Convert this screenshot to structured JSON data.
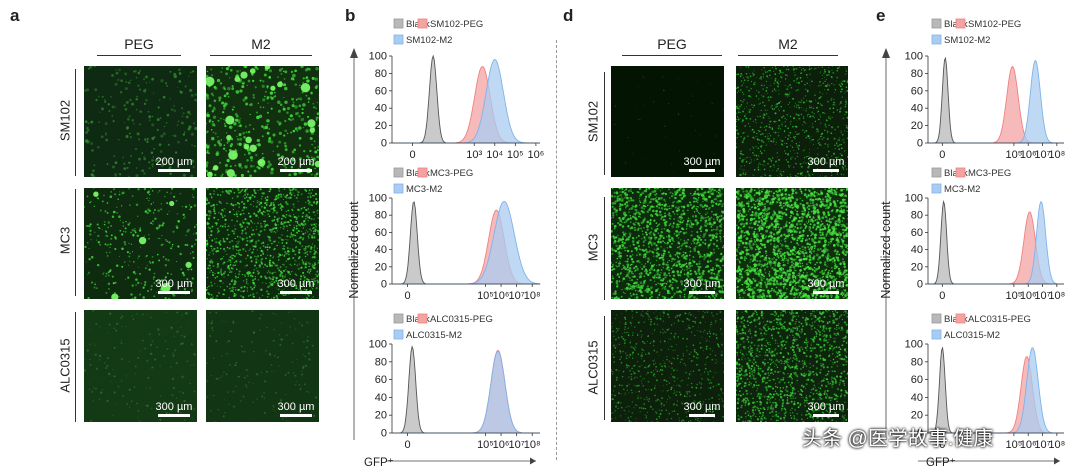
{
  "panels": {
    "a": {
      "letter": "a",
      "columns": [
        "PEG",
        "M2"
      ],
      "rows": [
        {
          "label": "SM102",
          "scale": [
            "200 µm",
            "200 µm"
          ]
        },
        {
          "label": "MC3",
          "scale": [
            "300 µm",
            "300 µm"
          ]
        },
        {
          "label": "ALC0315",
          "scale": [
            "300 µm",
            "300 µm"
          ]
        }
      ]
    },
    "b": {
      "letter": "b"
    },
    "d": {
      "letter": "d",
      "columns": [
        "PEG",
        "M2"
      ],
      "rows": [
        {
          "label": "SM102",
          "scale": [
            "300 µm",
            "300 µm"
          ]
        },
        {
          "label": "MC3",
          "scale": [
            "300 µm",
            "300 µm"
          ]
        },
        {
          "label": "ALC0315",
          "scale": [
            "300 µm",
            "300 µm"
          ]
        }
      ]
    },
    "e": {
      "letter": "e"
    }
  },
  "colors": {
    "blank": "#9a9a9a",
    "peg": "#f08080",
    "m2": "#7fb3ea",
    "fluor": "#3fd63a"
  },
  "watermark": "头条 @医学故事.健康",
  "chart_data": [
    {
      "panel": "b",
      "type": "area",
      "ylabel": "Normalized count",
      "xlabel": "GFP⁺",
      "ylim": [
        0,
        100
      ],
      "xscale": "log",
      "yticks": [
        "0",
        "20",
        "40",
        "60",
        "80",
        "100"
      ],
      "xticks": [
        {
          "v": 0,
          "t": "0"
        },
        {
          "v": 3,
          "t": "10³"
        },
        {
          "v": 4,
          "t": "10⁴"
        },
        {
          "v": 5,
          "t": "10⁵"
        },
        {
          "v": 6,
          "t": "10⁶"
        }
      ],
      "xrange": [
        -1,
        6.2
      ],
      "legend": [
        "Blank",
        "SM102-PEG",
        "SM102-M2"
      ],
      "series": [
        {
          "name": "Blank",
          "peak_log": 1.0,
          "width": 0.18,
          "height": 100
        },
        {
          "name": "SM102-PEG",
          "peak_log": 3.4,
          "width": 0.38,
          "height": 88
        },
        {
          "name": "SM102-M2",
          "peak_log": 4.0,
          "width": 0.42,
          "height": 96
        }
      ]
    },
    {
      "panel": "b",
      "type": "area",
      "ylim": [
        0,
        100
      ],
      "xscale": "log",
      "yticks": [
        "0",
        "20",
        "40",
        "60",
        "80",
        "100"
      ],
      "xticks": [
        {
          "v": 0,
          "t": "0"
        },
        {
          "v": 5,
          "t": "10⁵"
        },
        {
          "v": 6,
          "t": "10⁶"
        },
        {
          "v": 7,
          "t": "10⁷"
        },
        {
          "v": 8,
          "t": "10⁸"
        }
      ],
      "xrange": [
        -1,
        8.5
      ],
      "legend": [
        "Blank",
        "MC3-PEG",
        "MC3-M2"
      ],
      "series": [
        {
          "name": "Blank",
          "peak_log": 0.4,
          "width": 0.22,
          "height": 96
        },
        {
          "name": "MC3-PEG",
          "peak_log": 5.7,
          "width": 0.5,
          "height": 86
        },
        {
          "name": "MC3-M2",
          "peak_log": 6.2,
          "width": 0.65,
          "height": 96
        }
      ]
    },
    {
      "panel": "b",
      "type": "area",
      "ylim": [
        0,
        100
      ],
      "xscale": "log",
      "yticks": [
        "0",
        "20",
        "40",
        "60",
        "80",
        "100"
      ],
      "xticks": [
        {
          "v": 0,
          "t": "0"
        },
        {
          "v": 5,
          "t": "10⁵"
        },
        {
          "v": 6,
          "t": "10⁶"
        },
        {
          "v": 7,
          "t": "10⁷"
        },
        {
          "v": 8,
          "t": "10⁸"
        }
      ],
      "xrange": [
        -1,
        8.5
      ],
      "legend": [
        "Blank",
        "ALC0315-PEG",
        "ALC0315-M2"
      ],
      "series": [
        {
          "name": "Blank",
          "peak_log": 0.3,
          "width": 0.22,
          "height": 97
        },
        {
          "name": "ALC0315-PEG",
          "peak_log": 5.8,
          "width": 0.45,
          "height": 93
        },
        {
          "name": "ALC0315-M2",
          "peak_log": 5.8,
          "width": 0.45,
          "height": 92
        }
      ]
    },
    {
      "panel": "e",
      "type": "area",
      "ylabel": "Normalized count",
      "xlabel": "GFP⁺",
      "ylim": [
        0,
        100
      ],
      "xscale": "log",
      "yticks": [
        "0",
        "20",
        "40",
        "60",
        "80",
        "100"
      ],
      "xticks": [
        {
          "v": 0,
          "t": "0"
        },
        {
          "v": 5,
          "t": "10⁵"
        },
        {
          "v": 6,
          "t": "10⁶"
        },
        {
          "v": 7,
          "t": "10⁷"
        },
        {
          "v": 8,
          "t": "10⁸"
        }
      ],
      "xrange": [
        -1,
        8.5
      ],
      "legend": [
        "Blank",
        "SM102-PEG",
        "SM102-M2"
      ],
      "series": [
        {
          "name": "Blank",
          "peak_log": 0.2,
          "width": 0.2,
          "height": 98
        },
        {
          "name": "SM102-PEG",
          "peak_log": 4.9,
          "width": 0.4,
          "height": 88
        },
        {
          "name": "SM102-M2",
          "peak_log": 6.5,
          "width": 0.35,
          "height": 95
        }
      ]
    },
    {
      "panel": "e",
      "type": "area",
      "ylim": [
        0,
        100
      ],
      "xscale": "log",
      "yticks": [
        "0",
        "20",
        "40",
        "60",
        "80",
        "100"
      ],
      "xticks": [
        {
          "v": 0,
          "t": "0"
        },
        {
          "v": 5,
          "t": "10⁵"
        },
        {
          "v": 6,
          "t": "10⁶"
        },
        {
          "v": 7,
          "t": "10⁷"
        },
        {
          "v": 8,
          "t": "10⁸"
        }
      ],
      "xrange": [
        -1,
        8.5
      ],
      "legend": [
        "Blank",
        "MC3-PEG",
        "MC3-M2"
      ],
      "series": [
        {
          "name": "Blank",
          "peak_log": 0.1,
          "width": 0.2,
          "height": 96
        },
        {
          "name": "MC3-PEG",
          "peak_log": 6.1,
          "width": 0.4,
          "height": 84
        },
        {
          "name": "MC3-M2",
          "peak_log": 6.9,
          "width": 0.32,
          "height": 96
        }
      ]
    },
    {
      "panel": "e",
      "type": "area",
      "ylim": [
        0,
        100
      ],
      "xscale": "log",
      "yticks": [
        "0",
        "20",
        "40",
        "60",
        "80",
        "100"
      ],
      "xticks": [
        {
          "v": 0,
          "t": "0"
        },
        {
          "v": 5,
          "t": "10⁵"
        },
        {
          "v": 6,
          "t": "10⁶"
        },
        {
          "v": 7,
          "t": "10⁷"
        },
        {
          "v": 8,
          "t": "10⁸"
        }
      ],
      "xrange": [
        -1,
        8.5
      ],
      "legend": [
        "Blank",
        "ALC0315-PEG",
        "ALC0315-M2"
      ],
      "series": [
        {
          "name": "Blank",
          "peak_log": 0.0,
          "width": 0.2,
          "height": 96
        },
        {
          "name": "ALC0315-PEG",
          "peak_log": 5.9,
          "width": 0.4,
          "height": 86
        },
        {
          "name": "ALC0315-M2",
          "peak_log": 6.3,
          "width": 0.4,
          "height": 96
        }
      ]
    }
  ]
}
